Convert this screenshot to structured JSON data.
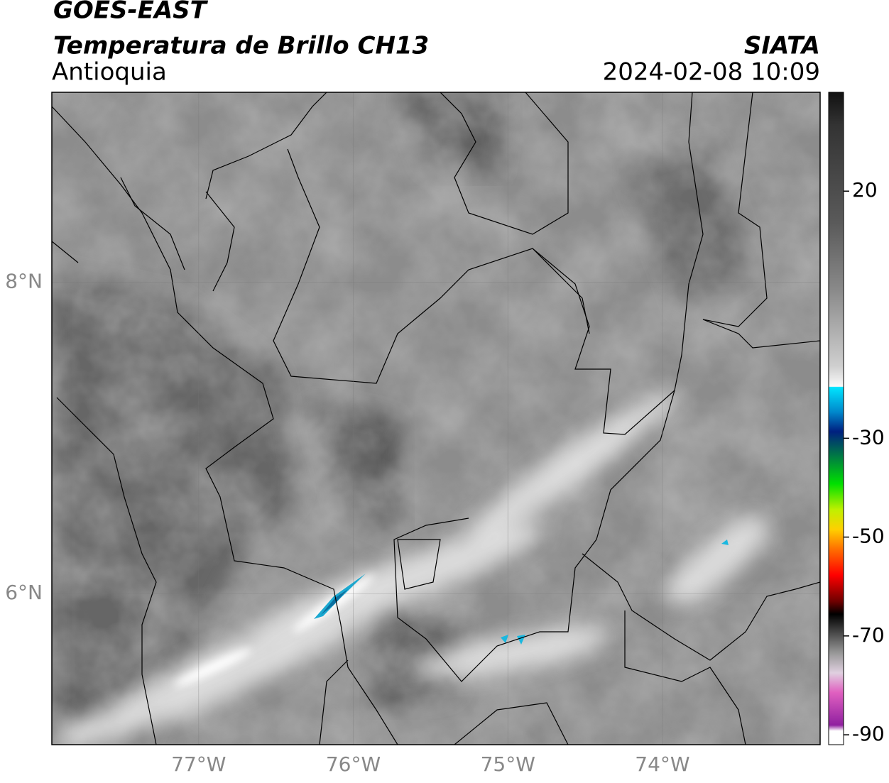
{
  "header": {
    "title": "GOES-EAST",
    "subtitle": "Temperatura de Brillo CH13",
    "region": "Antioquia",
    "source": "SIATA",
    "datetime": "2024-02-08 10:09"
  },
  "map": {
    "lon_range": [
      -77.95,
      -72.98
    ],
    "lat_range": [
      5.03,
      9.22
    ],
    "lon_ticks": [
      {
        "value": -77,
        "label": "77°W"
      },
      {
        "value": -76,
        "label": "76°W"
      },
      {
        "value": -75,
        "label": "75°W"
      },
      {
        "value": -74,
        "label": "74°W"
      }
    ],
    "lat_ticks": [
      {
        "value": 8,
        "label": "8°N"
      },
      {
        "value": 6,
        "label": "6°N"
      }
    ]
  },
  "colorbar": {
    "range": [
      -92,
      40
    ],
    "ticks": [
      20,
      -30,
      -50,
      -70,
      -90
    ]
  }
}
